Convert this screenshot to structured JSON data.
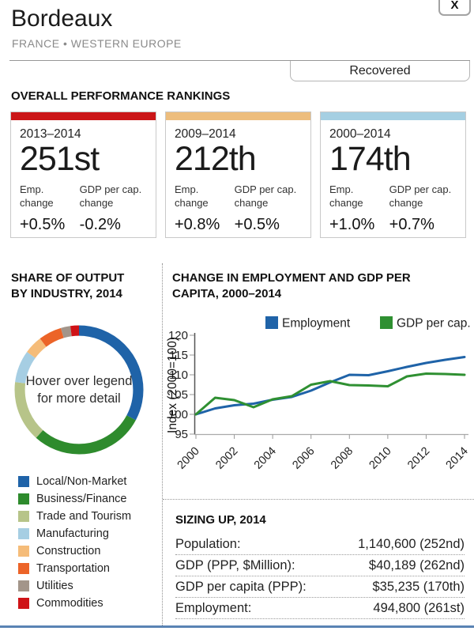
{
  "header": {
    "title": "Bordeaux",
    "subtitle": "FRANCE • WESTERN EUROPE",
    "close_label": "X",
    "status_label": "Recovered"
  },
  "rankings": {
    "heading": "OVERALL PERFORMANCE RANKINGS",
    "labels": {
      "emp": "Emp. change",
      "gdp": "GDP per cap. change"
    },
    "cards": [
      {
        "period": "2013–2014",
        "rank": "251st",
        "emp_change": "+0.5%",
        "gdp_change": "-0.2%",
        "bar_color": "#cb1618"
      },
      {
        "period": "2009–2014",
        "rank": "212th",
        "emp_change": "+0.8%",
        "gdp_change": "+0.5%",
        "bar_color": "#edbd7d"
      },
      {
        "period": "2000–2014",
        "rank": "174th",
        "emp_change": "+1.0%",
        "gdp_change": "+0.7%",
        "bar_color": "#a5cfe2"
      }
    ]
  },
  "share_section": {
    "heading_lines": [
      "SHARE OF OUTPUT",
      "BY INDUSTRY, 2014"
    ]
  },
  "chart_section": {
    "heading_lines": [
      "CHANGE IN EMPLOYMENT AND GDP PER",
      "CAPITA, 2000–2014"
    ]
  },
  "sizing_up": {
    "heading": "SIZING UP, 2014",
    "rows": [
      {
        "label": "Population:",
        "value": "1,140,600 (252nd)"
      },
      {
        "label": "GDP (PPP, $Million):",
        "value": "$40,189 (262nd)"
      },
      {
        "label": "GDP per capita (PPP):",
        "value": "$35,235 (170th)"
      },
      {
        "label": "Employment:",
        "value": "494,800 (261st)"
      }
    ]
  },
  "chart_data": [
    {
      "type": "pie",
      "subtype": "donut",
      "title": "SHARE OF OUTPUT BY INDUSTRY, 2014",
      "center_text": [
        "Hover over legend",
        "for more detail"
      ],
      "labels": [
        "Local/Non-Market",
        "Business/Finance",
        "Trade and Tourism",
        "Manufacturing",
        "Construction",
        "Transportation",
        "Utilities",
        "Commodities"
      ],
      "values": [
        32.8,
        28.8,
        15.3,
        8.1,
        4.6,
        5.8,
        2.4,
        2.2
      ],
      "colors": [
        "#1f63a8",
        "#2e8b2d",
        "#b7c489",
        "#a6cee3",
        "#f5bc79",
        "#ec6428",
        "#a3958a",
        "#cf1317"
      ],
      "start_angle_deg": 0,
      "direction": "clockwise",
      "legend_position": "below"
    },
    {
      "type": "line",
      "title": "CHANGE IN EMPLOYMENT AND GDP PER CAPITA, 2000–2014",
      "ylabel": "Index (2000=100)",
      "ylim": [
        95,
        120
      ],
      "y_ticks": [
        95,
        100,
        105,
        110,
        115,
        120
      ],
      "x": [
        2000,
        2001,
        2002,
        2003,
        2004,
        2005,
        2006,
        2007,
        2008,
        2009,
        2010,
        2011,
        2012,
        2013,
        2014
      ],
      "x_ticks": [
        2000,
        2002,
        2004,
        2006,
        2008,
        2010,
        2012,
        2014
      ],
      "grid": false,
      "legend_position": "top",
      "series": [
        {
          "name": "Employment",
          "color": "#1f63a8",
          "values": [
            100,
            101.5,
            102.3,
            102.7,
            103.7,
            104.4,
            106.0,
            108.1,
            110.0,
            109.9,
            110.9,
            112.0,
            113.0,
            113.8,
            114.5
          ]
        },
        {
          "name": "GDP per cap.",
          "color": "#2f9032",
          "values": [
            100,
            104.2,
            103.6,
            101.8,
            103.8,
            104.6,
            107.5,
            108.4,
            107.4,
            107.3,
            107.1,
            109.6,
            110.3,
            110.2,
            110.0
          ]
        }
      ]
    }
  ]
}
